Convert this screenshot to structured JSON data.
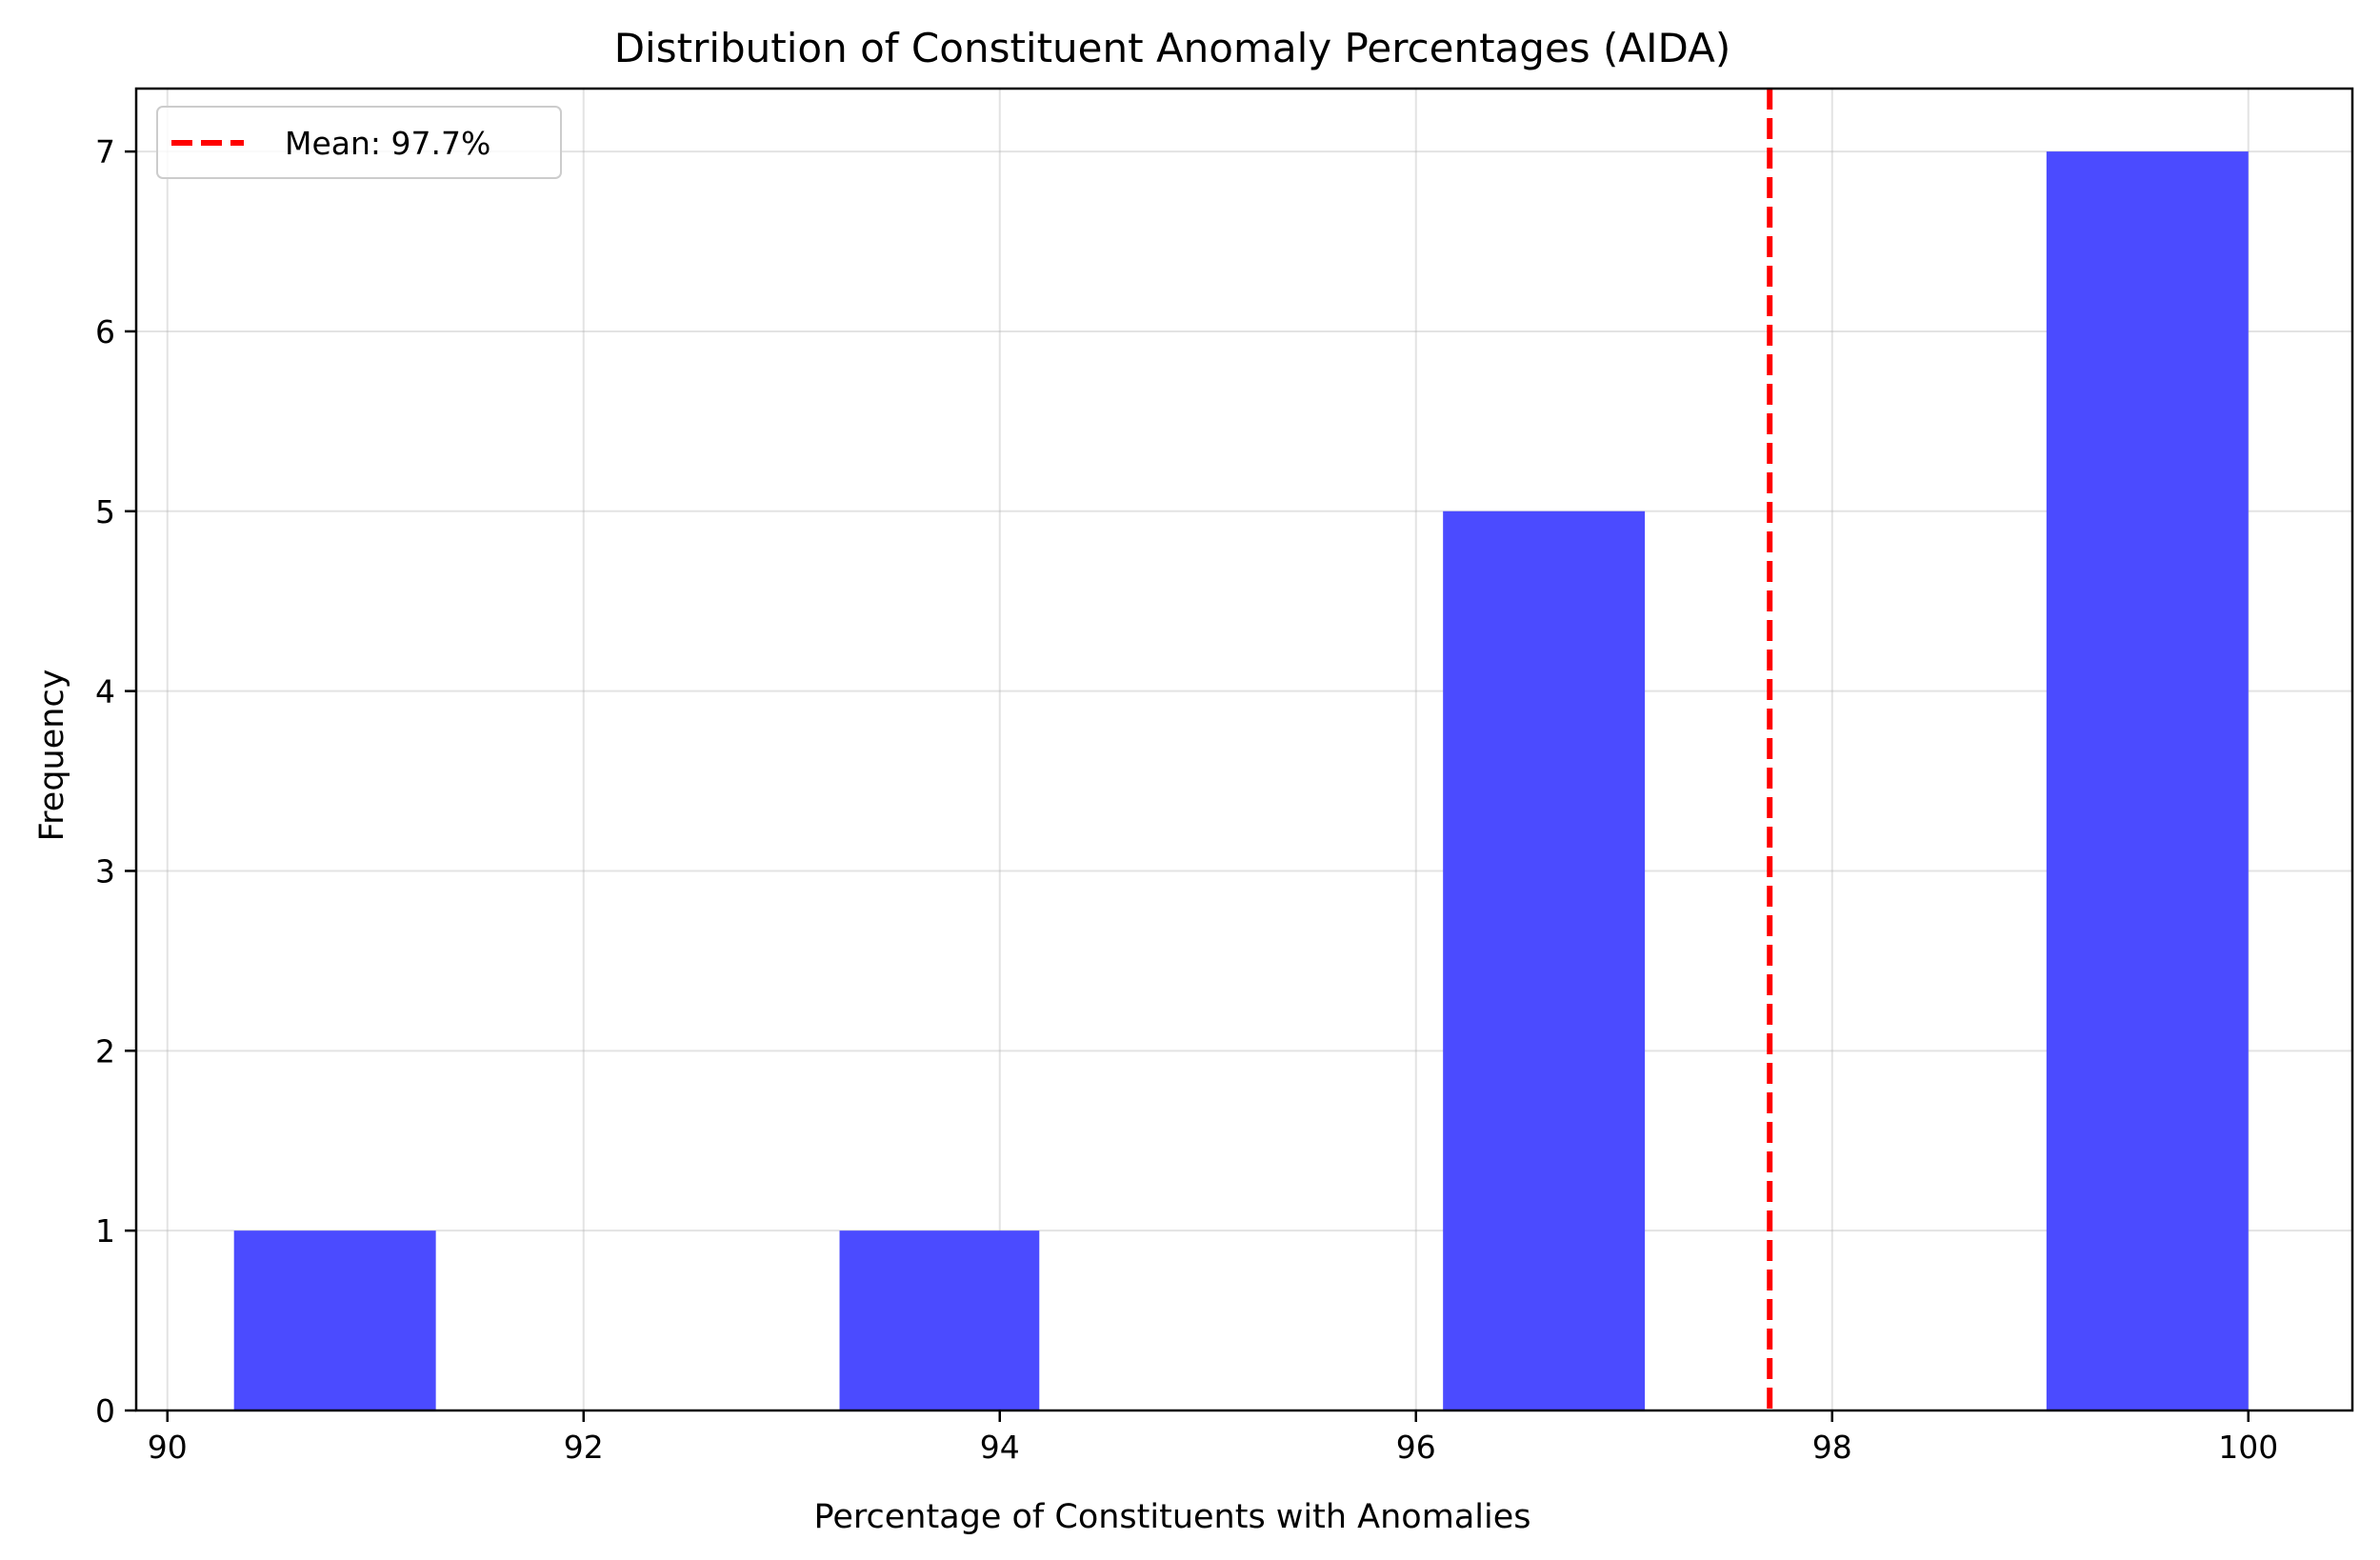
{
  "chart_data": {
    "type": "bar",
    "title": "Distribution of Constituent Anomaly Percentages (AIDA)",
    "xlabel": "Percentage of Constituents with Anomalies",
    "ylabel": "Frequency",
    "xlim": [
      89.85,
      100.5
    ],
    "ylim": [
      0,
      7.35
    ],
    "xticks": [
      90,
      92,
      94,
      96,
      98,
      100
    ],
    "yticks": [
      0,
      1,
      2,
      3,
      4,
      5,
      6,
      7
    ],
    "grid": true,
    "bin_edges": [
      90.32,
      91.29,
      92.26,
      93.23,
      94.19,
      95.16,
      96.13,
      97.1,
      98.06,
      99.03,
      100.0
    ],
    "counts": [
      1,
      0,
      0,
      1,
      0,
      0,
      5,
      0,
      0,
      7
    ],
    "bar_color": "#4b4bff",
    "mean": 97.7,
    "mean_line_color": "#ff0000",
    "legend": {
      "position": "top-left",
      "entries": [
        "Mean: 97.7%"
      ]
    }
  }
}
